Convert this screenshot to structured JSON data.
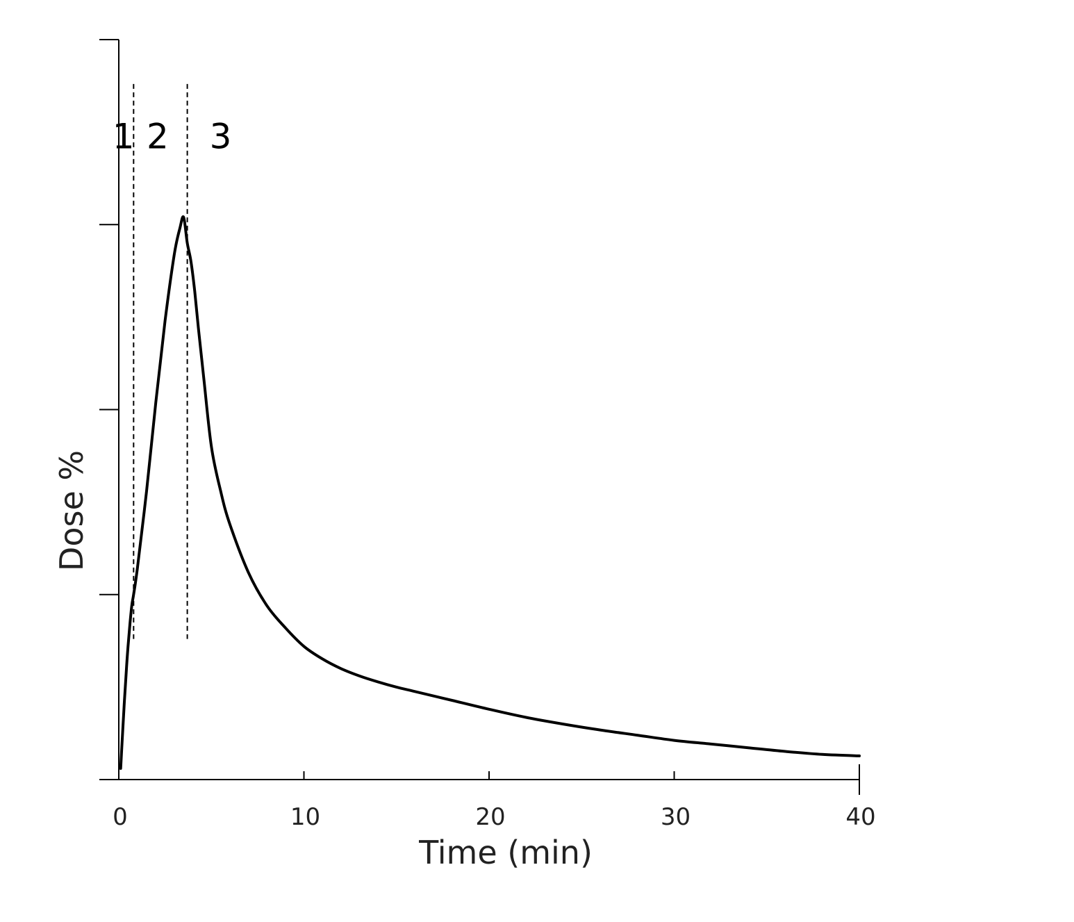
{
  "chart_data": {
    "type": "line",
    "title": "",
    "xlabel": "Time (min)",
    "ylabel": "Dose %",
    "xlim": [
      0,
      40
    ],
    "ylim": [
      0,
      100
    ],
    "x_ticks": [
      0,
      10,
      20,
      30,
      40
    ],
    "y_ticks": [
      0,
      25,
      50,
      75,
      100
    ],
    "show_y_tick_labels": false,
    "grid": false,
    "legend": "none",
    "phase_boundaries": [
      0.8,
      3.7
    ],
    "phase_labels": [
      "1",
      "2",
      "3"
    ],
    "phase_label_positions": [
      0.25,
      2.1,
      5.5
    ],
    "phase_label_y": 87,
    "phase_line_range": [
      19,
      94
    ],
    "series": [
      {
        "x": [
          0.1,
          0.2,
          0.3,
          0.4,
          0.5,
          0.6,
          0.7,
          0.8,
          1.0,
          1.5,
          2.0,
          2.5,
          3.0,
          3.3,
          3.5,
          3.7,
          3.9,
          4.1,
          4.3,
          4.6,
          5.0,
          5.5,
          6.0,
          7.0,
          8.0,
          9.0,
          10.0,
          11.0,
          12.0,
          13.0,
          14.0,
          15.0,
          16.0,
          18.0,
          20.0,
          22.0,
          24.0,
          26.0,
          28.0,
          30.0,
          32.0,
          34.0,
          36.0,
          38.0,
          40.0
        ],
        "y": [
          1.5,
          6,
          10.5,
          14.5,
          18,
          21,
          23.5,
          25,
          28.5,
          39,
          51,
          62,
          71,
          74.5,
          76,
          72.5,
          70,
          66,
          61,
          54,
          45,
          39,
          34.5,
          28,
          23.5,
          20.5,
          18,
          16.3,
          15,
          14,
          13.2,
          12.5,
          11.9,
          10.7,
          9.5,
          8.4,
          7.5,
          6.7,
          6.0,
          5.3,
          4.8,
          4.3,
          3.8,
          3.4,
          3.2
        ]
      }
    ]
  }
}
